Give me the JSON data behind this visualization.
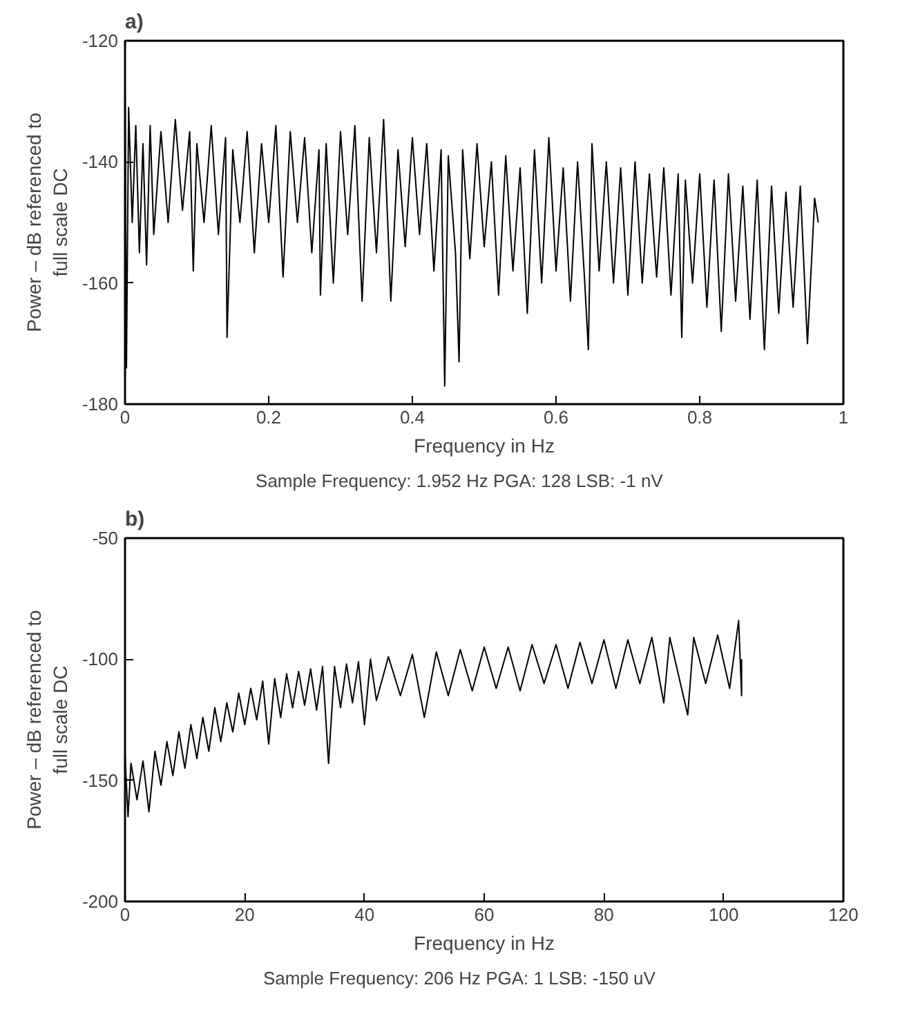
{
  "chart_data": [
    {
      "type": "line",
      "title": "a)",
      "xlabel": "Frequency in Hz",
      "ylabel": "Power – dB referenced to\nfull scale DC",
      "color": "#000000",
      "x": [
        0,
        0.002,
        0.005,
        0.01,
        0.015,
        0.02,
        0.025,
        0.03,
        0.035,
        0.04,
        0.05,
        0.06,
        0.07,
        0.08,
        0.09,
        0.095,
        0.1,
        0.11,
        0.12,
        0.13,
        0.14,
        0.142,
        0.15,
        0.16,
        0.17,
        0.18,
        0.19,
        0.2,
        0.21,
        0.22,
        0.23,
        0.24,
        0.25,
        0.26,
        0.27,
        0.272,
        0.28,
        0.29,
        0.3,
        0.31,
        0.32,
        0.33,
        0.34,
        0.35,
        0.36,
        0.37,
        0.38,
        0.39,
        0.4,
        0.41,
        0.42,
        0.43,
        0.44,
        0.445,
        0.45,
        0.46,
        0.465,
        0.47,
        0.48,
        0.49,
        0.5,
        0.51,
        0.52,
        0.53,
        0.54,
        0.55,
        0.56,
        0.57,
        0.58,
        0.59,
        0.6,
        0.61,
        0.62,
        0.63,
        0.64,
        0.645,
        0.65,
        0.66,
        0.67,
        0.68,
        0.69,
        0.7,
        0.71,
        0.72,
        0.73,
        0.74,
        0.75,
        0.76,
        0.77,
        0.775,
        0.78,
        0.79,
        0.8,
        0.81,
        0.82,
        0.83,
        0.84,
        0.85,
        0.86,
        0.87,
        0.88,
        0.89,
        0.9,
        0.91,
        0.92,
        0.93,
        0.94,
        0.95,
        0.96,
        0.965
      ],
      "values": [
        -128,
        -174,
        -131,
        -150,
        -134,
        -155,
        -137,
        -157,
        -134,
        -152,
        -135,
        -150,
        -133,
        -148,
        -135,
        -158,
        -137,
        -150,
        -134,
        -152,
        -136,
        -169,
        -138,
        -150,
        -135,
        -155,
        -137,
        -150,
        -134,
        -159,
        -135,
        -150,
        -136,
        -155,
        -138,
        -162,
        -137,
        -160,
        -135,
        -152,
        -134,
        -163,
        -136,
        -155,
        -133,
        -163,
        -138,
        -154,
        -136,
        -152,
        -137,
        -158,
        -138,
        -177,
        -139,
        -155,
        -173,
        -138,
        -156,
        -137,
        -154,
        -140,
        -162,
        -139,
        -158,
        -141,
        -165,
        -138,
        -160,
        -136,
        -158,
        -141,
        -163,
        -140,
        -160,
        -171,
        -137,
        -158,
        -140,
        -160,
        -141,
        -162,
        -140,
        -160,
        -142,
        -159,
        -141,
        -162,
        -142,
        -169,
        -143,
        -160,
        -142,
        -164,
        -143,
        -168,
        -142,
        -163,
        -144,
        -166,
        -143,
        -171,
        -144,
        -165,
        -145,
        -164,
        -144,
        -170,
        -146,
        -150
      ],
      "xlim": [
        0,
        1
      ],
      "ylim": [
        -180,
        -120
      ],
      "xticks": [
        0,
        0.2,
        0.4,
        0.6,
        0.8,
        1
      ],
      "yticks": [
        -180,
        -160,
        -140,
        -120
      ],
      "annotations": [
        "Sample Frequency: 1.952 Hz      PGA: 128      LSB: -1 nV"
      ]
    },
    {
      "type": "line",
      "title": "b)",
      "xlabel": "Frequency in Hz",
      "ylabel": "Power – dB referenced to\nfull scale DC",
      "color": "#000000",
      "x": [
        0,
        0.5,
        1,
        2,
        3,
        4,
        5,
        6,
        7,
        8,
        9,
        10,
        11,
        12,
        13,
        14,
        15,
        16,
        17,
        18,
        19,
        20,
        21,
        22,
        23,
        24,
        25,
        26,
        27,
        28,
        29,
        30,
        31,
        32,
        33,
        34,
        35,
        36,
        37,
        38,
        39,
        40,
        41,
        42,
        44,
        46,
        48,
        50,
        52,
        54,
        56,
        58,
        60,
        62,
        64,
        66,
        68,
        70,
        72,
        74,
        76,
        78,
        80,
        82,
        84,
        86,
        88,
        90,
        91,
        94,
        95,
        97,
        99,
        101,
        102.5,
        103,
        103
      ],
      "values": [
        -140,
        -165,
        -143,
        -158,
        -142,
        -163,
        -138,
        -152,
        -134,
        -148,
        -130,
        -145,
        -127,
        -141,
        -124,
        -138,
        -120,
        -134,
        -118,
        -130,
        -114,
        -127,
        -112,
        -125,
        -109,
        -135,
        -108,
        -124,
        -106,
        -120,
        -105,
        -119,
        -104,
        -121,
        -103,
        -143,
        -103,
        -120,
        -102,
        -118,
        -101,
        -127,
        -100,
        -117,
        -99,
        -115,
        -98,
        -124,
        -97,
        -115,
        -96,
        -113,
        -95,
        -112,
        -95,
        -113,
        -94,
        -110,
        -94,
        -112,
        -93,
        -110,
        -92,
        -112,
        -92,
        -110,
        -91,
        -118,
        -91,
        -123,
        -91,
        -110,
        -90,
        -112,
        -84,
        -115,
        -100
      ],
      "xlim": [
        0,
        120
      ],
      "ylim": [
        -200,
        -50
      ],
      "xticks": [
        0,
        20,
        40,
        60,
        80,
        100,
        120
      ],
      "yticks": [
        -200,
        -150,
        -100,
        -50
      ],
      "annotations": [
        "Sample Frequency: 206 Hz      PGA: 1      LSB: -150 uV"
      ]
    }
  ]
}
